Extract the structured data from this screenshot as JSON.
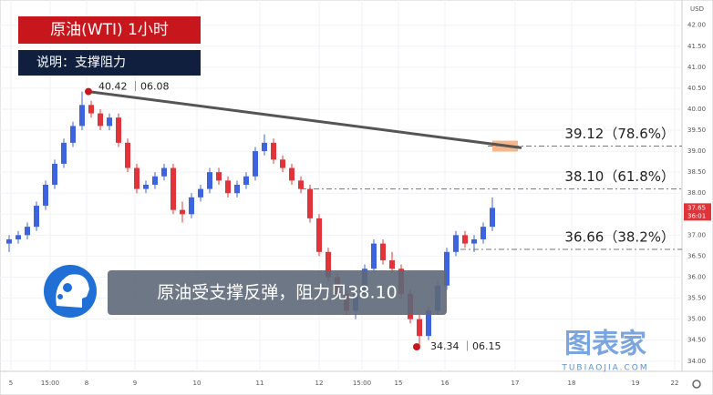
{
  "chart_data": {
    "type": "candlestick",
    "title": "原油(WTI)  1小时",
    "subtitle": "说明：支撑阻力",
    "annotation": "原油受支撑反弹，阻力见38.10",
    "currency": "USD",
    "open": [
      36.8,
      36.9,
      37.0,
      37.2,
      37.7,
      38.2,
      38.7,
      39.2,
      39.6,
      40.1,
      39.9,
      39.6,
      39.8,
      39.2,
      38.6,
      38.1,
      38.2,
      38.4,
      38.6,
      37.6,
      37.5,
      37.9,
      38.1,
      38.5,
      38.3,
      38.0,
      38.2,
      38.4,
      39.0,
      39.2,
      38.8,
      38.6,
      38.3,
      38.1,
      37.4,
      36.6,
      36.0,
      35.6,
      35.2,
      35.6,
      36.2,
      36.8,
      36.4,
      36.2,
      35.6,
      35.0,
      34.6,
      35.2,
      35.8,
      36.6,
      37.0,
      36.8,
      36.9,
      37.2
    ],
    "high": [
      37.0,
      37.1,
      37.3,
      37.8,
      38.3,
      38.8,
      39.3,
      39.7,
      40.42,
      40.2,
      40.0,
      39.9,
      39.9,
      39.3,
      38.7,
      38.3,
      38.5,
      38.7,
      38.7,
      37.8,
      38.0,
      38.2,
      38.6,
      38.6,
      38.4,
      38.3,
      38.5,
      39.1,
      39.4,
      39.3,
      38.9,
      38.7,
      38.4,
      38.2,
      37.5,
      36.7,
      36.1,
      35.7,
      35.7,
      36.3,
      36.9,
      36.9,
      36.6,
      36.3,
      35.7,
      35.1,
      35.3,
      35.9,
      36.7,
      37.1,
      37.1,
      37.0,
      37.3,
      37.9
    ],
    "low": [
      36.6,
      36.8,
      36.9,
      37.1,
      37.6,
      38.1,
      38.6,
      39.1,
      39.5,
      39.8,
      39.5,
      39.5,
      39.1,
      38.5,
      38.0,
      38.0,
      38.1,
      38.3,
      37.5,
      37.3,
      37.4,
      37.8,
      38.0,
      38.2,
      37.9,
      37.9,
      38.1,
      38.3,
      38.9,
      38.7,
      38.5,
      38.2,
      38.0,
      37.3,
      36.5,
      35.9,
      35.5,
      35.1,
      35.0,
      35.5,
      36.1,
      36.3,
      36.1,
      35.5,
      34.9,
      34.34,
      34.5,
      35.1,
      35.7,
      36.5,
      36.7,
      36.6,
      36.8,
      37.1
    ],
    "close": [
      36.9,
      37.0,
      37.2,
      37.7,
      38.2,
      38.7,
      39.2,
      39.6,
      40.1,
      39.9,
      39.6,
      39.8,
      39.2,
      38.6,
      38.1,
      38.2,
      38.4,
      38.6,
      37.6,
      37.5,
      37.9,
      38.1,
      38.5,
      38.3,
      38.0,
      38.2,
      38.4,
      39.0,
      39.2,
      38.8,
      38.6,
      38.3,
      38.1,
      37.4,
      36.6,
      36.0,
      35.6,
      35.2,
      35.6,
      36.2,
      36.8,
      36.4,
      36.2,
      35.6,
      35.0,
      34.6,
      35.2,
      35.8,
      36.6,
      37.0,
      36.8,
      36.9,
      37.2,
      37.65
    ],
    "up_color": "#3d63dd",
    "down_color": "#e0343a",
    "xlim": [
      -0.5,
      73.5
    ],
    "xticks": [
      {
        "value": 0.2,
        "label": "5"
      },
      {
        "value": 4.5,
        "label": "15:00"
      },
      {
        "value": 8.5,
        "label": "8"
      },
      {
        "value": 13.8,
        "label": "9"
      },
      {
        "value": 20.6,
        "label": "10"
      },
      {
        "value": 27.5,
        "label": "11"
      },
      {
        "value": 34,
        "label": "12"
      },
      {
        "value": 38.7,
        "label": "15:00"
      },
      {
        "value": 42.7,
        "label": "15"
      },
      {
        "value": 47.8,
        "label": "16"
      },
      {
        "value": 55.5,
        "label": "17"
      },
      {
        "value": 61.7,
        "label": "18"
      },
      {
        "value": 68.7,
        "label": "19"
      },
      {
        "value": 73,
        "label": "22"
      }
    ],
    "ylim": [
      33.8,
      42.6
    ],
    "yticks": [
      {
        "value": 34,
        "label": "34.00"
      },
      {
        "value": 34.5,
        "label": "34.50"
      },
      {
        "value": 35,
        "label": "35.00"
      },
      {
        "value": 35.5,
        "label": "35.50"
      },
      {
        "value": 36,
        "label": "36.00"
      },
      {
        "value": 36.5,
        "label": "36.50"
      },
      {
        "value": 37,
        "label": "37.00"
      },
      {
        "value": 37.5,
        "label": "37.50"
      },
      {
        "value": 38,
        "label": "38.00"
      },
      {
        "value": 38.5,
        "label": "38.50"
      },
      {
        "value": 39,
        "label": "39.00"
      },
      {
        "value": 39.5,
        "label": "39.50"
      },
      {
        "value": 40,
        "label": "40.00"
      },
      {
        "value": 40.5,
        "label": "40.50"
      },
      {
        "value": 41,
        "label": "41.00"
      },
      {
        "value": 41.5,
        "label": "41.50"
      },
      {
        "value": 42,
        "label": "42.00"
      }
    ],
    "grid": true,
    "trendline": {
      "x": [
        8.7,
        56.2
      ],
      "y": [
        40.42,
        39.08
      ]
    },
    "levels": [
      {
        "value": 39.12,
        "label": "39.12（78.6%）",
        "from": 52.5
      },
      {
        "value": 38.1,
        "label": "38.10（61.8%）",
        "from": 32
      },
      {
        "value": 36.66,
        "label": "36.66（38.2%）",
        "from": 49.5
      }
    ],
    "peak": {
      "value": 40.42,
      "label": "40.42 ｜06.08",
      "x": 8.7
    },
    "trough": {
      "value": 34.34,
      "label": "34.34 ｜06.15",
      "x": 44.7
    },
    "last_price": {
      "value": 37.65,
      "label": "37.65",
      "countdown": "36:01"
    },
    "watermark": {
      "title": "图表家",
      "site": "TUBIAOJIA.COM"
    }
  }
}
